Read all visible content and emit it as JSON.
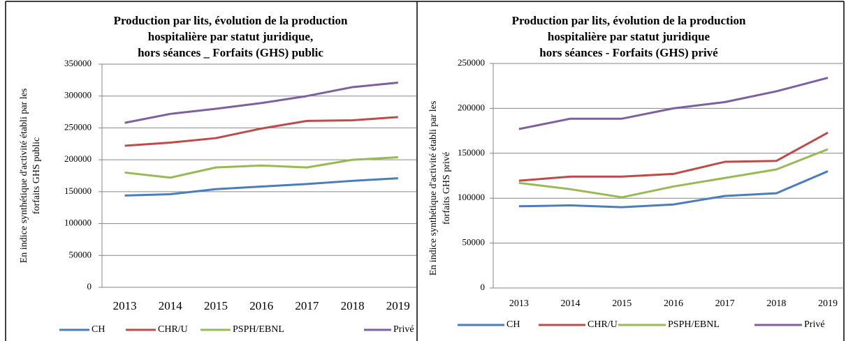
{
  "chart_data": [
    {
      "type": "line",
      "title": [
        "Production par lits, évolution de la production",
        "hospitalière par statut juridique,",
        "hors séances _ Forfaits (GHS) public"
      ],
      "y_label": [
        "En indice synthétique d'activité établi par les",
        "forfaits GHS public"
      ],
      "categories": [
        "2013",
        "2014",
        "2015",
        "2016",
        "2017",
        "2018",
        "2019"
      ],
      "ylim": [
        0,
        350000
      ],
      "yticks": [
        0,
        50000,
        100000,
        150000,
        200000,
        250000,
        300000,
        350000
      ],
      "grid": true,
      "legend": "bottom",
      "series": [
        {
          "name": "CH",
          "color": "#4a7ebb",
          "values": [
            144000,
            146000,
            154000,
            158000,
            162000,
            167000,
            171000
          ]
        },
        {
          "name": "CHR/U",
          "color": "#be4b48",
          "values": [
            222000,
            227000,
            234000,
            249000,
            261000,
            262000,
            267000
          ]
        },
        {
          "name": "PSPH/EBNL",
          "color": "#98b954",
          "values": [
            180000,
            172000,
            188000,
            191000,
            188000,
            200000,
            204000
          ]
        },
        {
          "name": "Privé",
          "color": "#7d60a0",
          "values": [
            258000,
            272000,
            280000,
            289000,
            300000,
            314000,
            321000
          ]
        }
      ]
    },
    {
      "type": "line",
      "title": [
        "Production par lits, évolution de la production",
        "hospitalière par statut juridique",
        "hors séances - Forfaits (GHS) privé"
      ],
      "y_label": [
        "En indice synthétique d'activité établi par les",
        "forfaits GHS privé"
      ],
      "categories": [
        "2013",
        "2014",
        "2015",
        "2016",
        "2017",
        "2018",
        "2019"
      ],
      "ylim": [
        0,
        250000
      ],
      "yticks": [
        0,
        50000,
        100000,
        150000,
        200000,
        250000
      ],
      "grid": true,
      "legend": "bottom",
      "series": [
        {
          "name": "CH",
          "color": "#4a7ebb",
          "values": [
            91000,
            92000,
            90000,
            93000,
            102500,
            105500,
            130000
          ]
        },
        {
          "name": "CHR/U",
          "color": "#be4b48",
          "values": [
            119500,
            124000,
            124000,
            127000,
            140500,
            141500,
            173000
          ]
        },
        {
          "name": "PSPH/EBNL",
          "color": "#98b954",
          "values": [
            117000,
            110000,
            101000,
            113000,
            122500,
            132000,
            154500
          ]
        },
        {
          "name": "Privé",
          "color": "#7d60a0",
          "values": [
            177000,
            188500,
            188500,
            200000,
            207000,
            219000,
            234000
          ]
        }
      ]
    }
  ]
}
